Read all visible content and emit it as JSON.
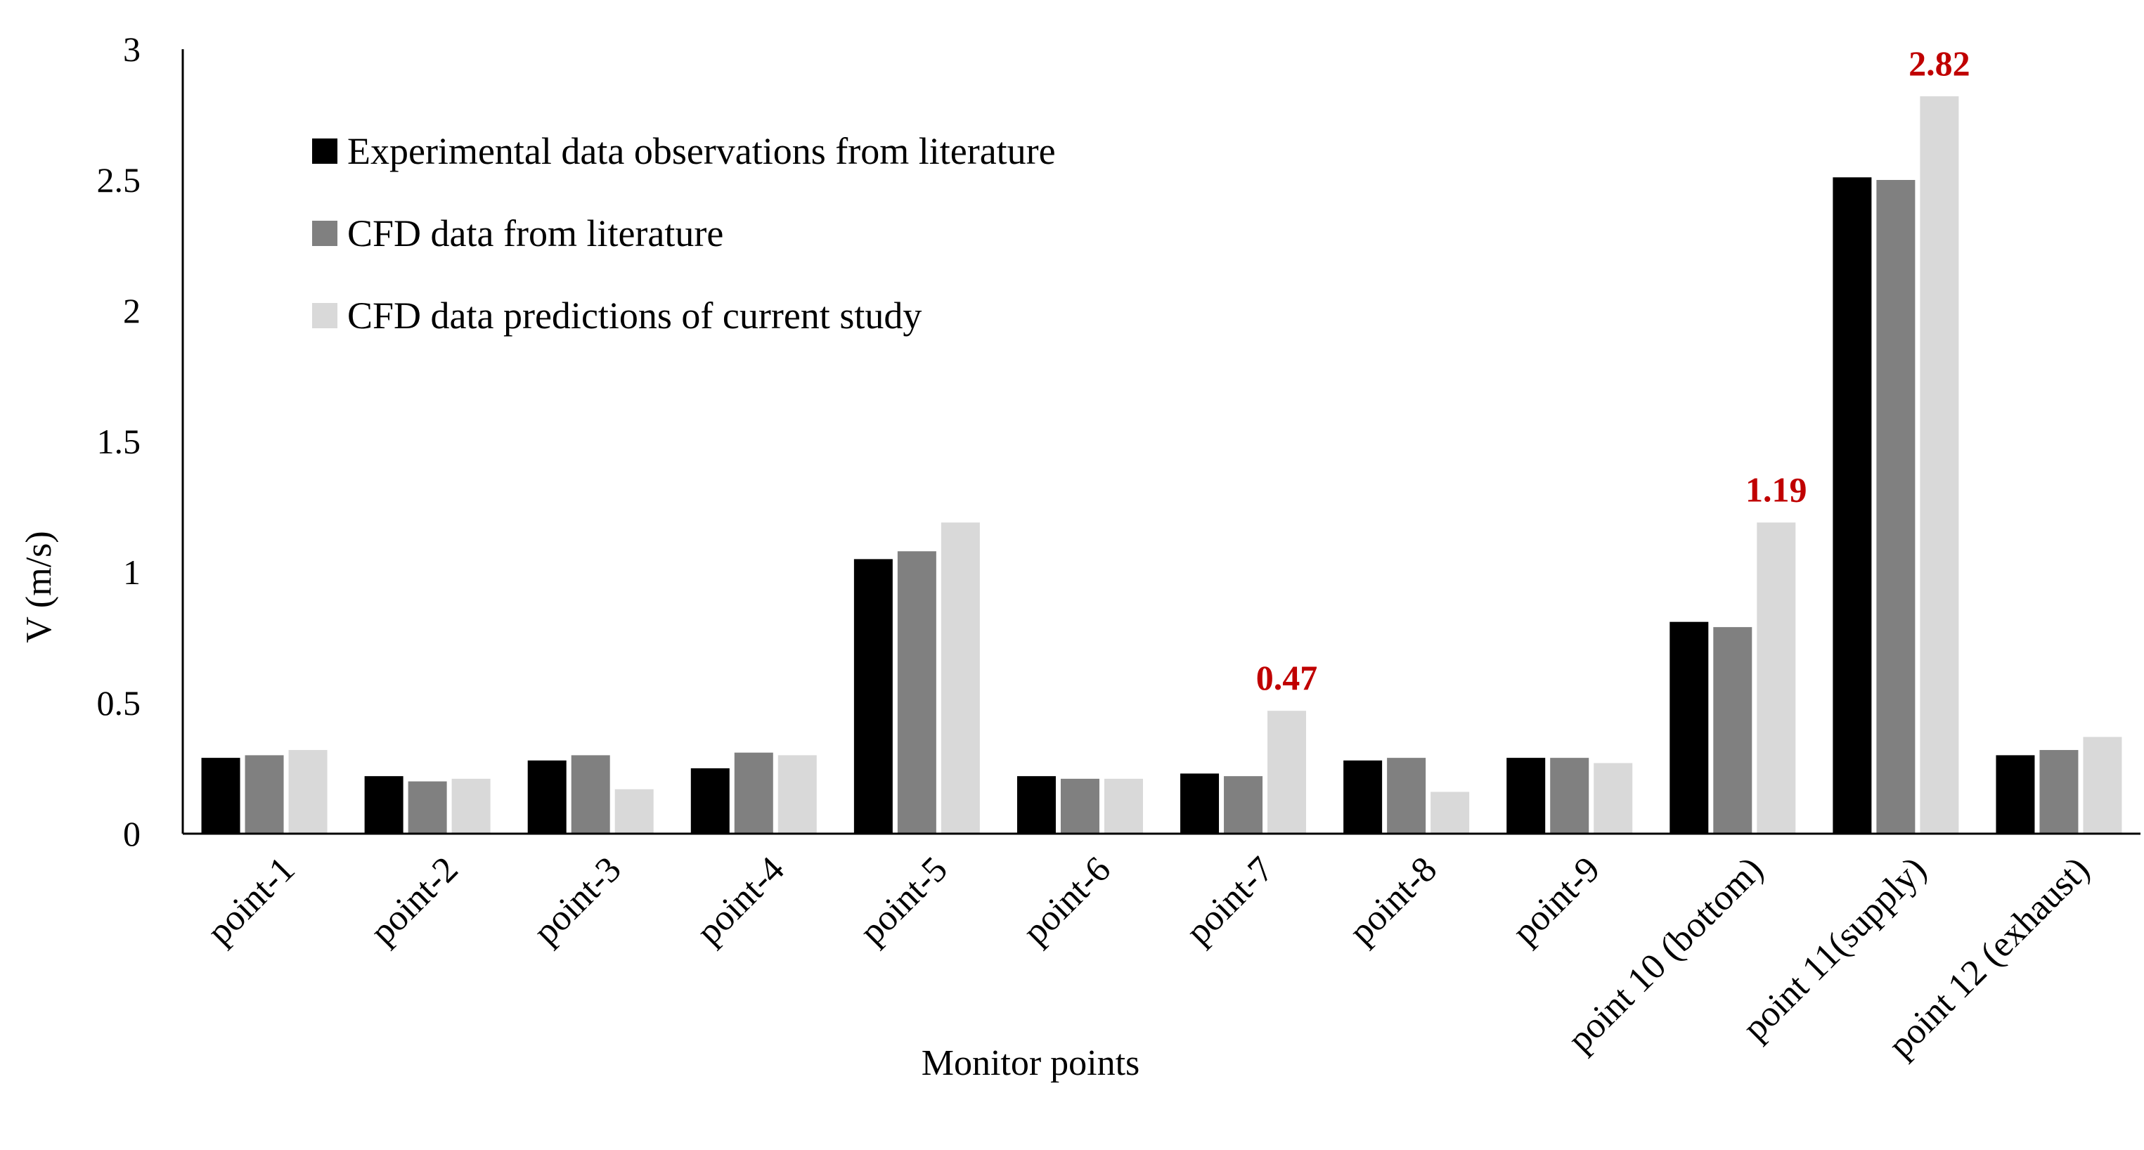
{
  "chart_data": {
    "type": "bar",
    "xlabel": "Monitor points",
    "ylabel": "V (m/s)",
    "ylim": [
      0,
      3
    ],
    "yticks": [
      "0",
      "0.5",
      "1",
      "1.5",
      "2",
      "2.5",
      "3"
    ],
    "categories": [
      "point-1",
      "point-2",
      "point-3",
      "point-4",
      "point-5",
      "point-6",
      "point-7",
      "point-8",
      "point-9",
      "point 10 (bottom)",
      "point 11(supply)",
      "point 12 (exhaust)"
    ],
    "series": [
      {
        "name": "Experimental data observations from literature",
        "color": "#000000",
        "values": [
          0.29,
          0.22,
          0.28,
          0.25,
          1.05,
          0.22,
          0.23,
          0.28,
          0.29,
          0.81,
          2.51,
          0.3
        ]
      },
      {
        "name": "CFD data from literature",
        "color": "#808080",
        "values": [
          0.3,
          0.2,
          0.3,
          0.31,
          1.08,
          0.21,
          0.22,
          0.29,
          0.29,
          0.79,
          2.5,
          0.32
        ]
      },
      {
        "name": "CFD data predictions of current study",
        "color": "#d9d9d9",
        "values": [
          0.32,
          0.21,
          0.17,
          0.3,
          1.19,
          0.21,
          0.47,
          0.16,
          0.27,
          1.19,
          2.82,
          0.37
        ]
      }
    ],
    "annotations": [
      {
        "category_index": 6,
        "series_index": 2,
        "text": "0.47",
        "color": "#c00000"
      },
      {
        "category_index": 9,
        "series_index": 2,
        "text": "1.19",
        "color": "#c00000"
      },
      {
        "category_index": 10,
        "series_index": 2,
        "text": "2.82",
        "color": "#c00000"
      }
    ],
    "legend_position": "top-left",
    "grid": false
  }
}
